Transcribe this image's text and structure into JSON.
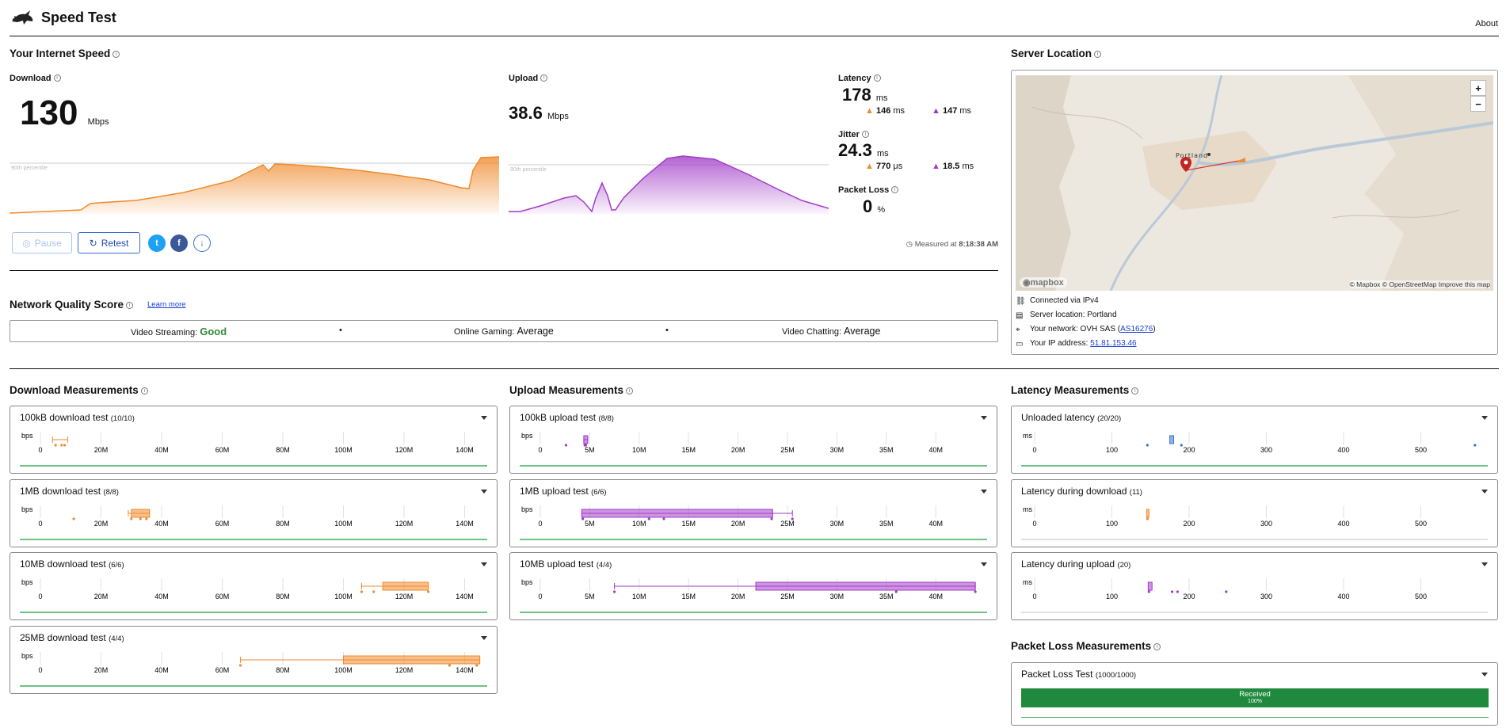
{
  "header": {
    "title": "Speed Test",
    "about": "About"
  },
  "speed": {
    "title": "Your Internet Speed",
    "download": {
      "label": "Download",
      "value": "130",
      "unit": "Mbps",
      "percentile": "90th percentile"
    },
    "upload": {
      "label": "Upload",
      "value": "38.6",
      "unit": "Mbps",
      "percentile": "90th percentile"
    },
    "latency": {
      "label": "Latency",
      "value": "178",
      "unit": "ms",
      "down": "146",
      "up": "147",
      "sub_unit": "ms"
    },
    "jitter": {
      "label": "Jitter",
      "value": "24.3",
      "unit": "ms",
      "down": "770",
      "down_unit": "μs",
      "up": "18.5",
      "up_unit": "ms"
    },
    "packet_loss": {
      "label": "Packet Loss",
      "value": "0",
      "unit": "%"
    },
    "buttons": {
      "pause": "Pause",
      "retest": "Retest"
    },
    "measured": "Measured at",
    "measured_time": "8:18:38 AM"
  },
  "nqs": {
    "title": "Network Quality Score",
    "learn_more": "Learn more",
    "items": [
      {
        "label": "Video Streaming:",
        "value": "Good"
      },
      {
        "label": "Online Gaming:",
        "value": "Average"
      },
      {
        "label": "Video Chatting:",
        "value": "Average"
      }
    ],
    "sep": "•",
    "good_color": "#2e8b3a"
  },
  "server": {
    "title": "Server Location",
    "map_city": "Portland",
    "map_credit": "© Mapbox © OpenStreetMap",
    "improve": "Improve this map",
    "mapbox": "mapbox",
    "zoom_in": "+",
    "zoom_out": "−",
    "lines": [
      {
        "text": "Connected via IPv4"
      },
      {
        "text": "Server location: Portland"
      },
      {
        "text": "Your network: OVH SAS (",
        "link": "AS16276",
        "after": ")"
      },
      {
        "text": "Your IP address: ",
        "link": "51.81.153.46"
      }
    ]
  },
  "download_meas": {
    "title": "Download Measurements",
    "unit": "bps",
    "ticks": [
      "0",
      "20M",
      "40M",
      "60M",
      "80M",
      "100M",
      "120M",
      "140M"
    ],
    "tests": [
      {
        "title": "100kB download test",
        "count": "(10/10)",
        "values": [
          5,
          7,
          8
        ],
        "whisker": [
          4,
          9
        ]
      },
      {
        "title": "1MB download test",
        "count": "(8/8)",
        "values": [
          11,
          30,
          33,
          35
        ],
        "box": [
          30,
          36
        ],
        "whisker": [
          29,
          36
        ]
      },
      {
        "title": "10MB download test",
        "count": "(6/6)",
        "values": [
          106,
          110,
          128
        ],
        "box": [
          113,
          128
        ],
        "whisker": [
          106,
          128
        ]
      },
      {
        "title": "25MB download test",
        "count": "(4/4)",
        "values": [
          66,
          135,
          144
        ],
        "box": [
          100,
          145
        ],
        "whisker": [
          66,
          145
        ]
      }
    ]
  },
  "upload_meas": {
    "title": "Upload Measurements",
    "unit": "bps",
    "ticks": [
      "0",
      "5M",
      "10M",
      "15M",
      "20M",
      "25M",
      "30M",
      "35M",
      "40M"
    ],
    "tests": [
      {
        "title": "100kB upload test",
        "count": "(8/8)",
        "values": [
          2.6,
          4.5,
          4.6
        ],
        "box": [
          4.4,
          4.8
        ],
        "whisker": [
          4.4,
          4.8
        ]
      },
      {
        "title": "1MB upload test",
        "count": "(6/6)",
        "values": [
          4.3,
          11,
          12.5,
          23.4,
          25.5
        ],
        "box": [
          4.2,
          23.5
        ],
        "whisker": [
          4.2,
          25.5
        ]
      },
      {
        "title": "10MB upload test",
        "count": "(4/4)",
        "values": [
          7.5,
          36,
          44
        ],
        "box": [
          21.8,
          44
        ],
        "whisker": [
          7.5,
          44
        ]
      }
    ]
  },
  "latency_meas": {
    "title": "Latency Measurements",
    "unit": "ms",
    "ticks": [
      "0",
      "100",
      "200",
      "300",
      "400",
      "500"
    ],
    "tests": [
      {
        "title": "Unloaded latency",
        "count": "(20/20)",
        "values": [
          146,
          190,
          570
        ],
        "box": [
          175,
          180
        ],
        "color": "#3a6fd0"
      },
      {
        "title": "Latency during download",
        "count": "(11)",
        "values": [
          146
        ],
        "box": [
          145,
          148
        ],
        "color": "#f08a2c"
      },
      {
        "title": "Latency during upload",
        "count": "(20)",
        "values": [
          148,
          178,
          185,
          248
        ],
        "box": [
          147,
          152
        ],
        "color": "#a23cc8"
      }
    ]
  },
  "packet_loss_meas": {
    "title": "Packet Loss Measurements",
    "test": "Packet Loss Test",
    "count": "(1000/1000)",
    "received": "Received",
    "percent": "100%",
    "received_fraction": 1.0,
    "color": "#1f8a3e"
  },
  "colors": {
    "download": "#f08a2c",
    "upload": "#a23cc8",
    "latency": "#3a6fd0",
    "green": "#3fae5a"
  }
}
